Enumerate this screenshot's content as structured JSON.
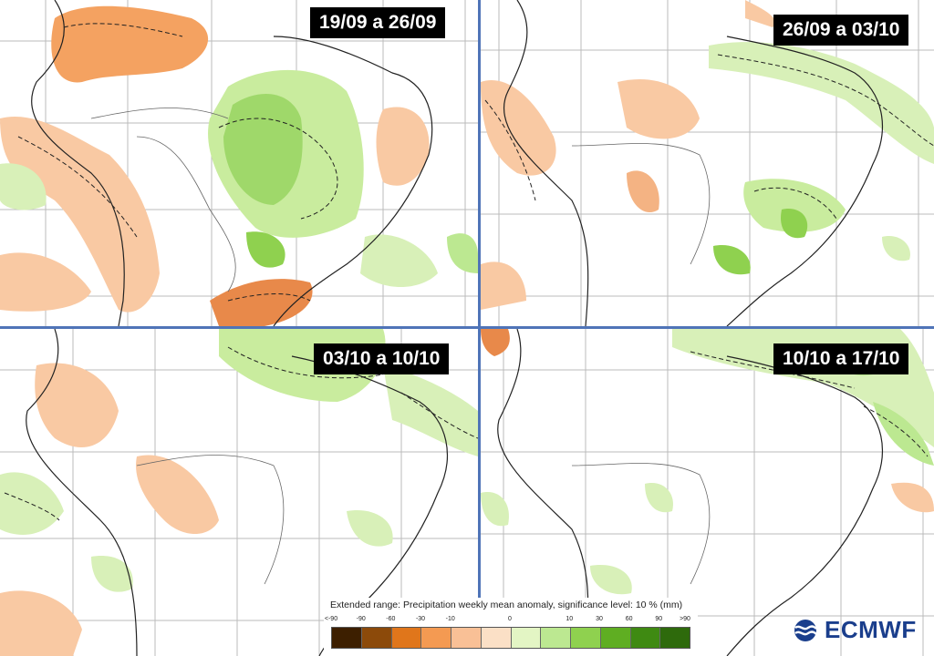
{
  "panels": [
    {
      "id": "p1",
      "label": "19/09 a 26/09"
    },
    {
      "id": "p2",
      "label": "26/09 a 03/10"
    },
    {
      "id": "p3",
      "label": "03/10 a 10/10"
    },
    {
      "id": "p4",
      "label": "10/10 a 17/10"
    }
  ],
  "legend": {
    "title": "Extended range: Precipitation weekly mean anomaly, significance level: 10 % (mm)",
    "ticks": [
      "<-90",
      "-90",
      "-60",
      "-30",
      "-10",
      "0",
      "10",
      "30",
      "60",
      "90",
      ">90"
    ],
    "colors": [
      "#3d1f00",
      "#8c4a0a",
      "#e0761b",
      "#f49a52",
      "#f9c096",
      "#fbe0c6",
      "#e3f5c4",
      "#bce891",
      "#8fd14f",
      "#5fae22",
      "#3f8a12",
      "#2e6a0c"
    ]
  },
  "logo": {
    "text": "ECMWF",
    "icon": "ecmwf-logo-icon"
  },
  "colors": {
    "divider": "#4f74b8",
    "label_bg": "#000000",
    "label_fg": "#ffffff"
  }
}
